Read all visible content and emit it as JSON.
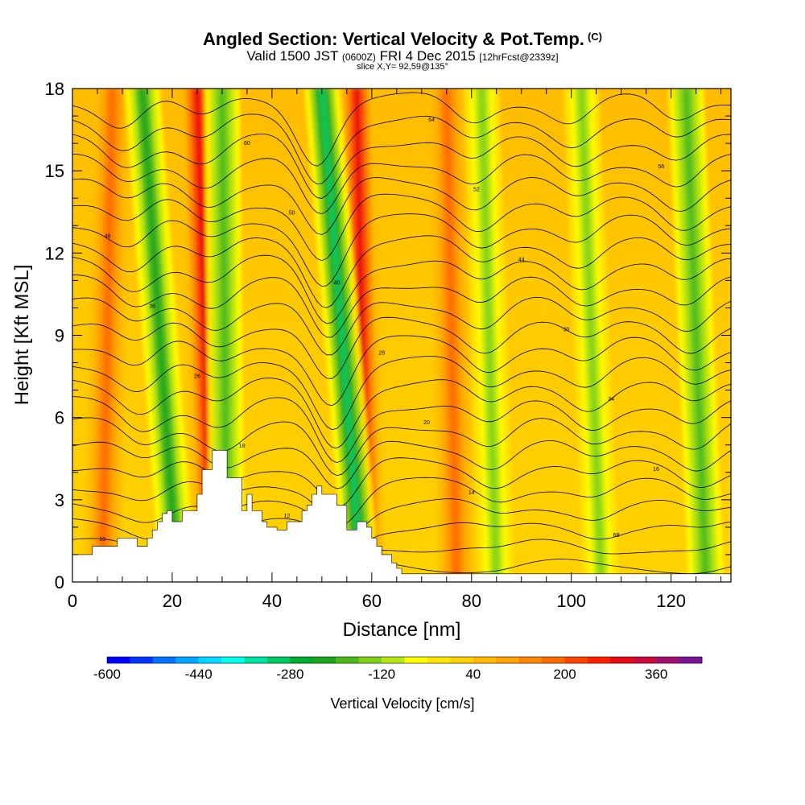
{
  "header": {
    "title": "Angled Section: Vertical Velocity & Pot.Temp.",
    "title_mark": "(C)",
    "valid_prefix": "Valid 1500 JST",
    "valid_utc": "(0600Z)",
    "valid_date": "FRI 4 Dec 2015",
    "forecast": "[12hrFcst@2339z]",
    "slice": "slice X,Y= 92,59@135°"
  },
  "chart_data": {
    "type": "heatmap",
    "xlabel": "Distance [nm]",
    "ylabel": "Height [Kft MSL]",
    "xlim": [
      0,
      132
    ],
    "ylim": [
      0,
      18
    ],
    "x_ticks": [
      "0",
      "20",
      "40",
      "60",
      "80",
      "100",
      "120"
    ],
    "y_ticks": [
      "0",
      "3",
      "6",
      "9",
      "12",
      "15",
      "18"
    ],
    "colorbar": {
      "title": "Vertical Velocity [cm/s]",
      "tick_labels": [
        "-600",
        "-440",
        "-280",
        "-120",
        "40",
        "200",
        "360"
      ],
      "levels": [
        -600,
        -560,
        -520,
        -480,
        -440,
        -400,
        -360,
        -320,
        -280,
        -240,
        -200,
        -160,
        -120,
        -80,
        -40,
        0,
        40,
        80,
        120,
        160,
        200,
        240,
        280,
        320,
        360,
        400,
        440
      ],
      "colors": [
        "#0000ff",
        "#0036ff",
        "#0073ff",
        "#00a6ff",
        "#00d8ff",
        "#00ffee",
        "#00e2a5",
        "#00c860",
        "#00aa2e",
        "#1ea51e",
        "#4cb81d",
        "#7fd01a",
        "#b6e414",
        "#ffff00",
        "#ffe600",
        "#ffd200",
        "#ffbb00",
        "#ffa400",
        "#ff8800",
        "#ff6a00",
        "#ff4400",
        "#ff1e00",
        "#e60a14",
        "#c80a3c",
        "#a0106e",
        "#7a1496"
      ]
    },
    "features": {
      "downdraft_bands": [
        {
          "x_bottom": 21,
          "x_top": 14,
          "max_negative_cm_s": -240
        },
        {
          "x_bottom": 31,
          "x_top": 30,
          "max_negative_cm_s": -200
        },
        {
          "x_bottom": 58,
          "x_top": 50,
          "max_negative_cm_s": -320
        },
        {
          "x_bottom": 85,
          "x_top": 82,
          "max_negative_cm_s": -160
        },
        {
          "x_bottom": 106,
          "x_top": 102,
          "max_negative_cm_s": -160
        },
        {
          "x_bottom": 127,
          "x_top": 123,
          "max_negative_cm_s": -200
        }
      ],
      "updraft_bands": [
        {
          "x_bottom": 28,
          "x_top": 25,
          "max_positive_cm_s": 280
        },
        {
          "x_bottom": 59,
          "x_top": 57,
          "max_positive_cm_s": 280
        },
        {
          "x_bottom": 6,
          "x_top": 8,
          "max_positive_cm_s": 160
        },
        {
          "x_bottom": 77,
          "x_top": 75,
          "max_positive_cm_s": 160
        }
      ]
    },
    "isentropes": {
      "count": 24,
      "labels": [
        "10",
        "12",
        "14",
        "16",
        "18",
        "20",
        "24",
        "26",
        "28",
        "30",
        "36",
        "40",
        "44",
        "48",
        "50",
        "52",
        "56",
        "60",
        "64",
        "68"
      ]
    },
    "terrain_profile": {
      "x": [
        0,
        4,
        4,
        9,
        9,
        13,
        13,
        15,
        15,
        16,
        16,
        17,
        17,
        18,
        18,
        19,
        19,
        20,
        20,
        22,
        22,
        25,
        25,
        26,
        26,
        28,
        28,
        31,
        31,
        34,
        34,
        35,
        35,
        36,
        36,
        38,
        38,
        39,
        39,
        41,
        41,
        43,
        43,
        46,
        46,
        47,
        47,
        48,
        48,
        49,
        49,
        50,
        50,
        53,
        53,
        55,
        55,
        57,
        57,
        59,
        59,
        60,
        60,
        61,
        61,
        62,
        62,
        64,
        64,
        65,
        65,
        66,
        66,
        67,
        67,
        68,
        68,
        71,
        71,
        132
      ],
      "height_kft": [
        1.0,
        1.0,
        1.3,
        1.3,
        1.6,
        1.6,
        1.3,
        1.3,
        1.6,
        1.6,
        1.9,
        1.9,
        2.2,
        2.2,
        2.5,
        2.5,
        2.6,
        2.6,
        2.2,
        2.2,
        2.6,
        2.6,
        3.2,
        3.2,
        4.1,
        4.1,
        4.8,
        4.8,
        3.8,
        3.8,
        2.6,
        2.6,
        3.2,
        3.2,
        2.6,
        2.6,
        2.2,
        2.2,
        2.0,
        2.0,
        1.9,
        1.9,
        2.2,
        2.2,
        2.6,
        2.6,
        2.8,
        2.8,
        3.2,
        3.2,
        3.5,
        3.5,
        3.2,
        3.2,
        2.8,
        2.8,
        1.9,
        1.9,
        2.2,
        2.2,
        2.0,
        2.0,
        1.6,
        1.6,
        1.3,
        1.3,
        1.0,
        1.0,
        0.7,
        0.7,
        0.5,
        0.5,
        0.3,
        0.3,
        0.3,
        0.3,
        0.3,
        0.3,
        0.3,
        0.3
      ]
    }
  }
}
